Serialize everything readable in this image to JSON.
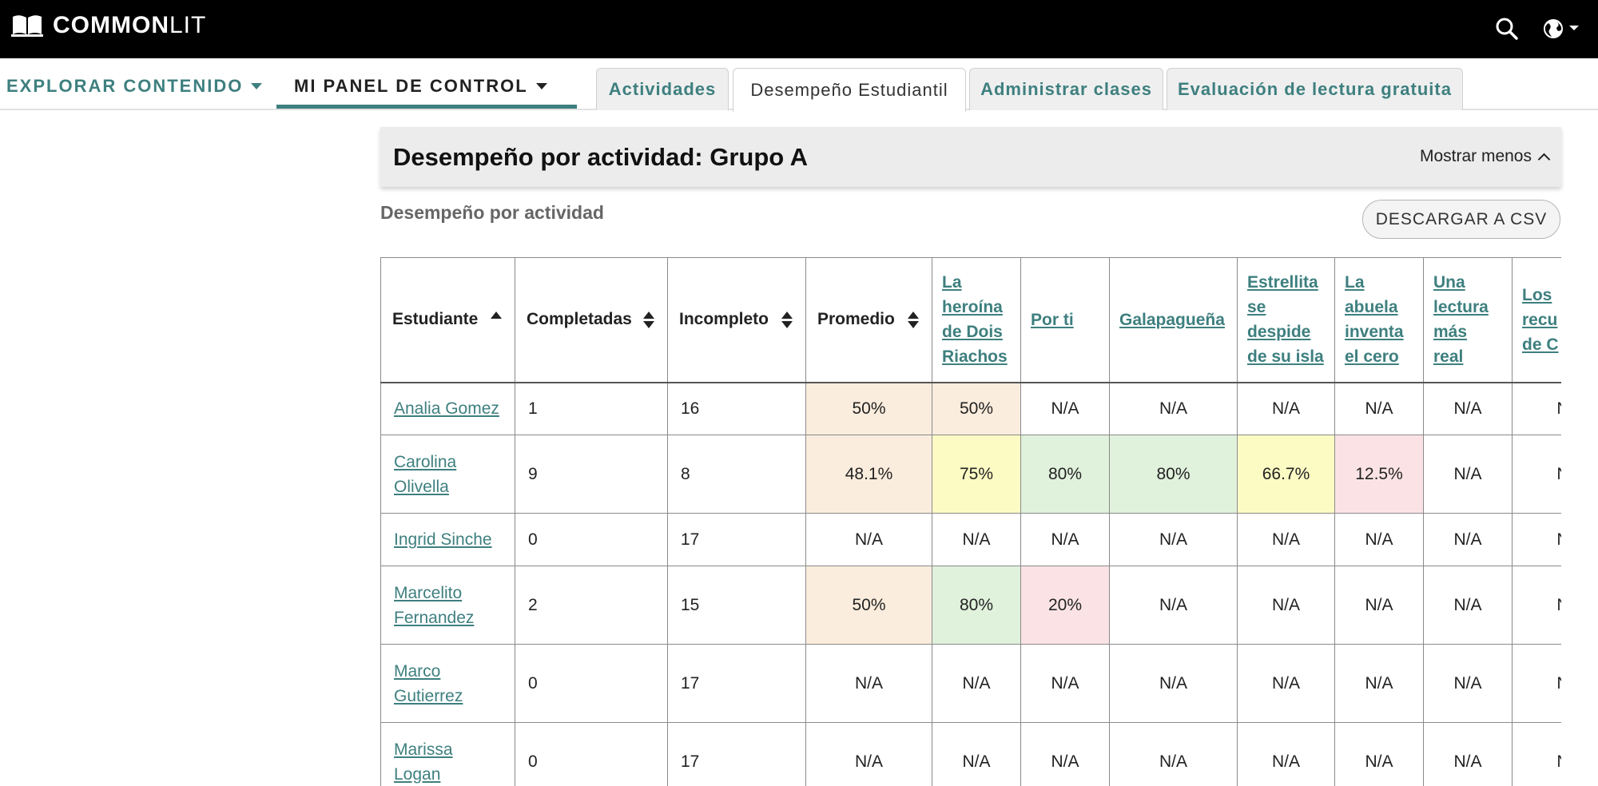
{
  "brand": {
    "bold": "COMMON",
    "light": "LIT"
  },
  "topbar": {
    "search_icon": "search-icon",
    "language_icon": "globe-icon"
  },
  "nav": {
    "explore": "EXPLORAR CONTENIDO",
    "panel": "MI PANEL DE CONTROL",
    "tabs": [
      "Actividades",
      "Desempeño Estudiantil",
      "Administrar clases",
      "Evaluación de lectura gratuita"
    ],
    "active_tab": "Desempeño Estudiantil"
  },
  "section": {
    "title": "Desempeño por actividad: Grupo A",
    "toggle": "Mostrar menos",
    "subtitle": "Desempeño por actividad",
    "csv_button": "DESCARGAR A CSV"
  },
  "table": {
    "headers": [
      "Estudiante",
      "Completadas",
      "Incompleto",
      "Promedio",
      "La heroína de Dois Riachos",
      "Por ti",
      "Galapagueña",
      "Estrellita se despide de su isla",
      "La abuela inventa el cero",
      "Una lectura más real",
      "Los recuerdos de C"
    ],
    "header_lines": {
      "h4": [
        "La",
        "heroína",
        "de Dois",
        "Riachos"
      ],
      "h5": [
        "Por ti"
      ],
      "h6": [
        "Galapagueña"
      ],
      "h7": [
        "Estrellita",
        "se",
        "despide",
        "de su isla"
      ],
      "h8": [
        "La",
        "abuela",
        "inventa",
        "el cero"
      ],
      "h9": [
        "Una",
        "lectura",
        "más",
        "real"
      ],
      "h10": [
        "Los",
        "recu",
        "de C"
      ]
    },
    "sort": {
      "column": "Estudiante",
      "direction": "ascending"
    },
    "rows": [
      {
        "name": "Analia Gomez",
        "name_lines": [
          "Analia Gomez"
        ],
        "completed": "1",
        "incomplete": "16",
        "cells": [
          "50%",
          "50%",
          "N/A",
          "N/A",
          "N/A",
          "N/A",
          "N/A",
          "N"
        ],
        "colors": [
          "orange",
          "orange",
          "",
          "",
          "",
          "",
          "",
          ""
        ]
      },
      {
        "name": "Carolina Olivella",
        "name_lines": [
          "Carolina",
          "Olivella"
        ],
        "completed": "9",
        "incomplete": "8",
        "cells": [
          "48.1%",
          "75%",
          "80%",
          "80%",
          "66.7%",
          "12.5%",
          "N/A",
          "N"
        ],
        "colors": [
          "orange",
          "yellow",
          "green",
          "green",
          "yellow",
          "pink",
          "",
          ""
        ]
      },
      {
        "name": "Ingrid Sinche",
        "name_lines": [
          "Ingrid Sinche"
        ],
        "completed": "0",
        "incomplete": "17",
        "cells": [
          "N/A",
          "N/A",
          "N/A",
          "N/A",
          "N/A",
          "N/A",
          "N/A",
          "N"
        ],
        "colors": [
          "",
          "",
          "",
          "",
          "",
          "",
          "",
          ""
        ]
      },
      {
        "name": "Marcelito Fernandez",
        "name_lines": [
          "Marcelito",
          "Fernandez"
        ],
        "completed": "2",
        "incomplete": "15",
        "cells": [
          "50%",
          "80%",
          "20%",
          "N/A",
          "N/A",
          "N/A",
          "N/A",
          "N"
        ],
        "colors": [
          "orange",
          "green",
          "pink",
          "",
          "",
          "",
          "",
          ""
        ]
      },
      {
        "name": "Marco Gutierrez",
        "name_lines": [
          "Marco",
          "Gutierrez"
        ],
        "completed": "0",
        "incomplete": "17",
        "cells": [
          "N/A",
          "N/A",
          "N/A",
          "N/A",
          "N/A",
          "N/A",
          "N/A",
          "N"
        ],
        "colors": [
          "",
          "",
          "",
          "",
          "",
          "",
          "",
          ""
        ]
      },
      {
        "name": "Marissa Logan",
        "name_lines": [
          "Marissa",
          "Logan"
        ],
        "completed": "0",
        "incomplete": "17",
        "cells": [
          "N/A",
          "N/A",
          "N/A",
          "N/A",
          "N/A",
          "N/A",
          "N/A",
          "N"
        ],
        "colors": [
          "",
          "",
          "",
          "",
          "",
          "",
          "",
          ""
        ]
      }
    ]
  },
  "colors": {
    "accent": "#3e7f7f",
    "orange": "#fbeddd",
    "yellow": "#fcfbc4",
    "green": "#e0f1dc",
    "pink": "#fbe3e5"
  }
}
